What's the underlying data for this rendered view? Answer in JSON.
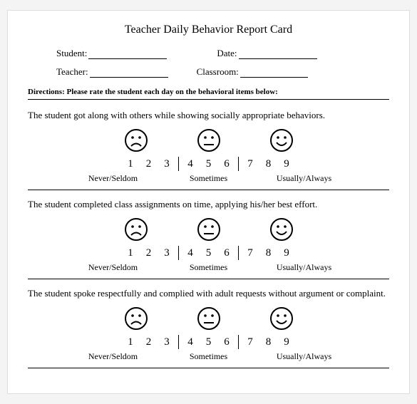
{
  "title": "Teacher Daily Behavior Report Card",
  "fields": {
    "student_label": "Student:",
    "date_label": "Date:",
    "teacher_label": "Teacher:",
    "classroom_label": "Classroom:"
  },
  "directions": "Directions: Please rate the student each day on the behavioral items below:",
  "scale": {
    "numbers": [
      "1",
      "2",
      "3",
      "4",
      "5",
      "6",
      "7",
      "8",
      "9"
    ],
    "label_low": "Never/Seldom",
    "label_mid": "Sometimes",
    "label_high": "Usually/Always",
    "face_stroke": "#000000",
    "face_size": 34,
    "face_stroke_width": 2
  },
  "items": [
    {
      "prompt": "The student got along with others while showing socially appropriate behaviors."
    },
    {
      "prompt": "The student completed class assignments on time, applying his/her best effort."
    },
    {
      "prompt": "The student spoke respectfully and complied with adult requests without argument or complaint."
    }
  ],
  "layout": {
    "page_bg": "#ffffff",
    "body_bg": "#f4f4f4",
    "underline_widths": {
      "student": 110,
      "date": 110,
      "teacher": 110,
      "classroom": 95
    }
  }
}
